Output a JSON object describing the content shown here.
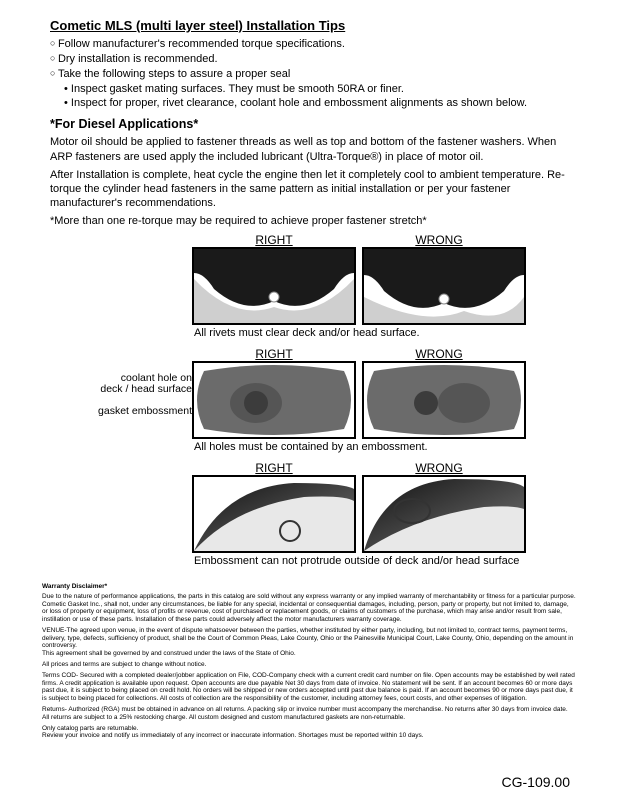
{
  "title": "Cometic MLS (multi layer steel) Installation Tips",
  "bullets": [
    {
      "cls": "circ indent1",
      "text": "Follow manufacturer's recommended torque specifications."
    },
    {
      "cls": "circ indent1",
      "text": "Dry installation is recommended."
    },
    {
      "cls": "circ indent1",
      "text": "Take the following steps to assure a proper seal"
    },
    {
      "cls": "dot indent2",
      "text": "Inspect gasket mating surfaces.  They must be smooth 50RA or finer."
    },
    {
      "cls": "dot indent2",
      "text": "Inspect for proper, rivet clearance, coolant hole and embossment alignments as shown below."
    }
  ],
  "diesel_heading": "*For Diesel Applications*",
  "diesel_p1": "Motor oil should be applied to fastener threads as well as top and bottom of the fastener washers. When ARP fasteners are used apply the included lubricant (Ultra-Torque®) in place of motor oil.",
  "diesel_p2": "After Installation is complete, heat cycle the engine then let it completely cool to ambient temperature. Re-torque the cylinder head fasteners in the same pattern as initial installation or per your fastener manufacturer's recommendations.",
  "diesel_note": "*More than one re-torque may be required to achieve proper fastener stretch*",
  "right_label": "RIGHT",
  "wrong_label": "WRONG",
  "caption1": "All rivets must clear deck and/or head surface.",
  "caption2": "All holes must be contained by an embossment.",
  "caption3": "Embossment can not protrude outside of deck and/or head surface",
  "side_label_1a": "coolant hole on",
  "side_label_1b": "deck / head surface",
  "side_label_2": "gasket embossment",
  "disclaimer_h": "Warranty Disclaimer*",
  "fine1": "Due to the nature of performance applications, the parts in this catalog are sold without any express warranty or any implied warranty of merchantability or fitness for a particular purpose.  Cometic Gasket Inc., shall not, under any circumstances, be liable for any special, incidental or consequential damages, including, person, party or property, but not limited to, damage, or loss of property or equipment, loss of profits or revenue, cost of purchased or replacement goods, or claims of customers of the purchase, which may arise and/or result from sale, instillation or use of these parts.  Installation of these parts could adversely affect the motor manufacturers warranty coverage.",
  "fine2": "VENUE-The agreed upon venue, in the event of dispute whatsoever between the parties, whether instituted by either party, including, but not limited to, contract terms, payment terms, delivery, type, defects, sufficiency of product, shall be the Court of Common Pleas, Lake County, Ohio or the Painesville Municipal Court, Lake County, Ohio, depending on the amount in controversy.",
  "fine2b": "This agreement shall be governed by and construed under the laws of the State of Ohio.",
  "fine3": "All prices and terms are subject to change without notice.",
  "fine4": "Terms COD- Secured with a completed dealer/jobber application on File, COD-Company check with a current credit card number on file.  Open accounts may be established by well rated firms.  A credit application is available upon request.  Open accounts are due payable Net 30 days from date of invoice.  No statement will be sent.  If an account becomes 60 or more days past due, it is subject to being placed on credit hold.  No orders will be shipped or new orders accepted until past due balance is paid.  If an account becomes 90 or more days past due, it is subject to being placed for collections.  All costs of collection are the responsibility of the customer, including attorney fees, court costs, and other expenses of litigation.",
  "fine5": "Returns- Authorized (RGA) must be obtained in advance on all returns.  A packing slip or invoice number must accompany the merchandise.  No returns after 30 days from invoice date.  All returns are subject to a 25% restocking charge.  All custom designed and custom manufactured gaskets are non-returnable.",
  "fine6": "Only catalog parts are returnable.",
  "fine6b": "Review your invoice and notify us immediately of any incorrect or inaccurate information.  Shortages must be reported within 10 days.",
  "footer_code": "CG-109.00",
  "colors": {
    "dark": "#1a1a1a",
    "mid": "#6b6b6b",
    "light": "#cfcfcf"
  }
}
